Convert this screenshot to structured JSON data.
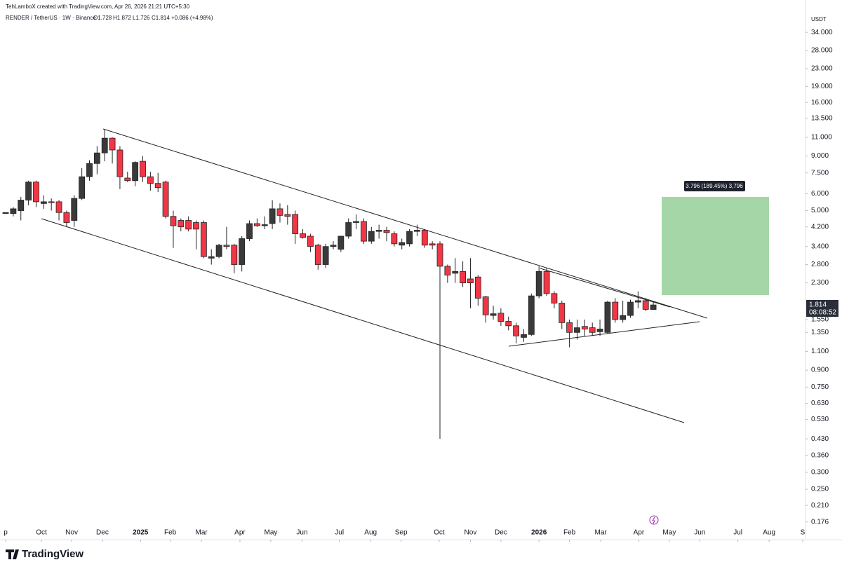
{
  "watermark": "TehLamboX created with TradingView.com, Apr 26, 2026 21:21 UTC+5:30",
  "brand": "TradingView",
  "chart_data": {
    "type": "candlestick",
    "symbol": "RENDER / TetherUS · 1W · Binance",
    "ohlc_header": [
      "O1.728",
      "H1.872",
      "L1.726",
      "C1.814",
      "+0.086 (+4.98%)"
    ],
    "currency": "USDT",
    "last_price_label": "1.814",
    "countdown": "08:08:52",
    "measure_label": "3.796 (189.45%) 3,796",
    "log_scale": true,
    "grid": false,
    "up_color": "#3a3a3a",
    "down_color": "#f23645",
    "categories": [
      null,
      null,
      null,
      null,
      null,
      null,
      null,
      null,
      null,
      null,
      null,
      null,
      null,
      null,
      null,
      null,
      null,
      null,
      null,
      null,
      null,
      null,
      null,
      null,
      null,
      null,
      null,
      null,
      null,
      null,
      null,
      null,
      null,
      null,
      null,
      null,
      null,
      null,
      null,
      null,
      null,
      null,
      null,
      null,
      null,
      null,
      null,
      null,
      null,
      null,
      null,
      null,
      null,
      null,
      null,
      null,
      null,
      null,
      null,
      null,
      null,
      null,
      null,
      null,
      null,
      null,
      null,
      null,
      null,
      null,
      null,
      null,
      null,
      null,
      null,
      null,
      null,
      null,
      null,
      null,
      null,
      null,
      null,
      null,
      null,
      null
    ],
    "open": [
      4.85,
      4.85,
      5.0,
      5.6,
      6.8,
      5.4,
      5.5,
      5.5,
      4.9,
      4.5,
      5.7,
      7.2,
      8.3,
      9.3,
      10.9,
      9.6,
      7.1,
      6.9,
      8.5,
      7.2,
      6.7,
      6.8,
      4.7,
      4.5,
      4.5,
      4.4,
      4.4,
      3.0,
      3.05,
      3.45,
      3.45,
      2.8,
      3.7,
      4.35,
      4.25,
      4.35,
      5.1,
      4.8,
      4.8,
      3.9,
      3.8,
      3.45,
      2.8,
      3.4,
      3.3,
      3.8,
      4.4,
      4.45,
      3.6,
      4.0,
      4.05,
      3.9,
      3.45,
      3.5,
      4.0,
      4.05,
      3.5,
      3.5,
      2.75,
      2.55,
      2.6,
      2.4,
      2.45,
      1.98,
      1.62,
      1.66,
      1.52,
      1.45,
      1.28,
      1.32,
      2.0,
      2.6,
      2.05,
      1.85,
      1.5,
      1.35,
      1.44,
      1.42,
      1.36,
      1.35,
      1.87,
      1.55,
      1.62,
      1.87,
      1.9,
      1.728
    ],
    "high": [
      4.9,
      5.2,
      5.8,
      6.9,
      6.9,
      5.9,
      5.7,
      5.6,
      5.0,
      5.9,
      7.9,
      8.6,
      10.0,
      12.0,
      11.0,
      10.0,
      7.6,
      8.5,
      9.0,
      7.6,
      7.5,
      6.9,
      5.0,
      4.6,
      4.7,
      4.5,
      4.5,
      3.3,
      3.5,
      4.2,
      3.5,
      3.8,
      4.5,
      4.6,
      4.7,
      5.6,
      5.4,
      5.3,
      5.0,
      4.1,
      3.9,
      3.5,
      3.5,
      3.6,
      3.8,
      4.6,
      4.8,
      4.6,
      4.2,
      4.3,
      4.2,
      4.0,
      3.7,
      4.1,
      4.3,
      4.1,
      3.6,
      3.6,
      2.8,
      3.0,
      2.9,
      3.0,
      2.5,
      2.0,
      1.8,
      1.75,
      1.6,
      1.5,
      1.4,
      2.05,
      2.75,
      2.7,
      2.1,
      1.9,
      1.55,
      1.55,
      1.55,
      1.5,
      1.55,
      1.9,
      1.95,
      1.9,
      1.92,
      2.1,
      1.95,
      1.872
    ],
    "low": [
      4.85,
      4.7,
      4.5,
      5.3,
      5.2,
      5.1,
      5.0,
      4.5,
      4.2,
      4.2,
      5.6,
      6.9,
      7.4,
      8.5,
      8.3,
      6.3,
      6.8,
      6.5,
      6.8,
      6.2,
      6.1,
      4.6,
      3.35,
      4.0,
      4.0,
      3.3,
      3.0,
      2.8,
      3.0,
      3.3,
      2.55,
      2.6,
      3.6,
      4.2,
      4.1,
      4.1,
      4.4,
      4.3,
      3.5,
      3.7,
      3.2,
      2.65,
      2.7,
      3.3,
      3.2,
      3.7,
      4.1,
      3.5,
      3.5,
      3.7,
      3.6,
      3.4,
      3.3,
      3.4,
      3.8,
      3.35,
      3.3,
      0.43,
      2.3,
      2.3,
      2.2,
      1.75,
      1.8,
      1.5,
      1.55,
      1.45,
      1.38,
      1.2,
      1.22,
      1.3,
      1.95,
      2.0,
      1.75,
      1.4,
      1.15,
      1.25,
      1.3,
      1.3,
      1.3,
      1.33,
      1.5,
      1.5,
      1.58,
      1.75,
      1.7,
      1.726
    ],
    "close": [
      4.9,
      5.1,
      5.6,
      6.8,
      5.5,
      5.5,
      5.45,
      4.9,
      4.4,
      5.7,
      7.2,
      8.3,
      9.3,
      10.9,
      9.6,
      7.2,
      6.9,
      8.4,
      7.2,
      6.7,
      6.4,
      4.7,
      4.25,
      4.2,
      4.1,
      4.1,
      3.05,
      3.05,
      3.45,
      3.4,
      2.8,
      3.7,
      4.35,
      4.25,
      4.3,
      5.1,
      4.75,
      4.7,
      3.9,
      3.75,
      3.4,
      2.8,
      3.4,
      3.45,
      3.8,
      4.4,
      4.45,
      3.6,
      4.0,
      4.05,
      3.95,
      3.5,
      3.55,
      4.0,
      4.05,
      3.45,
      3.45,
      2.75,
      2.5,
      2.6,
      2.3,
      2.3,
      1.95,
      1.63,
      1.65,
      1.52,
      1.45,
      1.3,
      1.32,
      2.0,
      2.6,
      2.05,
      1.85,
      1.5,
      1.35,
      1.42,
      1.4,
      1.35,
      1.4,
      1.87,
      1.55,
      1.62,
      1.87,
      1.9,
      1.73,
      1.814
    ],
    "xlim": [
      -0.74,
      104.7
    ],
    "xticks": [
      {
        "value": 0,
        "label": "p"
      },
      {
        "value": 4.7,
        "label": "Oct"
      },
      {
        "value": 8.66,
        "label": "Nov"
      },
      {
        "value": 12.7,
        "label": "Dec"
      },
      {
        "value": 17.7,
        "label": "2025"
      },
      {
        "value": 21.6,
        "label": "Feb"
      },
      {
        "value": 25.7,
        "label": "Mar"
      },
      {
        "value": 30.75,
        "label": "Apr"
      },
      {
        "value": 34.8,
        "label": "May"
      },
      {
        "value": 38.9,
        "label": "Jun"
      },
      {
        "value": 43.8,
        "label": "Jul"
      },
      {
        "value": 47.9,
        "label": "Aug"
      },
      {
        "value": 51.9,
        "label": "Sep"
      },
      {
        "value": 56.9,
        "label": "Oct"
      },
      {
        "value": 61.0,
        "label": "Nov"
      },
      {
        "value": 65.0,
        "label": "Dec"
      },
      {
        "value": 70.0,
        "label": "2026"
      },
      {
        "value": 74.0,
        "label": "Feb"
      },
      {
        "value": 78.1,
        "label": "Mar"
      },
      {
        "value": 83.1,
        "label": "Apr"
      },
      {
        "value": 87.1,
        "label": "May"
      },
      {
        "value": 91.1,
        "label": "Jun"
      },
      {
        "value": 96.1,
        "label": "Jul"
      },
      {
        "value": 100.2,
        "label": "Aug"
      },
      {
        "value": 104.6,
        "label": "S"
      }
    ],
    "ylim": [
      0.151,
      43
    ],
    "yticks": [
      {
        "value": 34,
        "label": "34.000"
      },
      {
        "value": 28,
        "label": "28.000"
      },
      {
        "value": 23,
        "label": "23.000"
      },
      {
        "value": 19,
        "label": "19.000"
      },
      {
        "value": 16,
        "label": "16.000"
      },
      {
        "value": 13.5,
        "label": "13.500"
      },
      {
        "value": 11,
        "label": "11.000"
      },
      {
        "value": 9,
        "label": "9.000"
      },
      {
        "value": 7.5,
        "label": "7.500"
      },
      {
        "value": 6,
        "label": "6.000"
      },
      {
        "value": 5,
        "label": "5.000"
      },
      {
        "value": 4.2,
        "label": "4.200"
      },
      {
        "value": 3.4,
        "label": "3.400"
      },
      {
        "value": 2.8,
        "label": "2.800"
      },
      {
        "value": 2.3,
        "label": "2.300"
      },
      {
        "value": 1.55,
        "label": "1.550"
      },
      {
        "value": 1.35,
        "label": "1.350"
      },
      {
        "value": 1.1,
        "label": "1.100"
      },
      {
        "value": 0.9,
        "label": "0.900"
      },
      {
        "value": 0.75,
        "label": "0.750"
      },
      {
        "value": 0.63,
        "label": "0.630"
      },
      {
        "value": 0.53,
        "label": "0.530"
      },
      {
        "value": 0.43,
        "label": "0.430"
      },
      {
        "value": 0.36,
        "label": "0.360"
      },
      {
        "value": 0.3,
        "label": "0.300"
      },
      {
        "value": 0.25,
        "label": "0.250"
      },
      {
        "value": 0.21,
        "label": "0.210"
      },
      {
        "value": 0.176,
        "label": "0.176"
      }
    ]
  }
}
